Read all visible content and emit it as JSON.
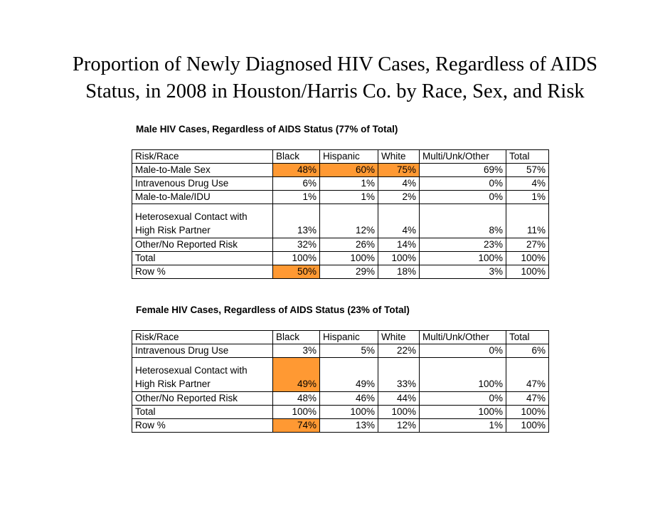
{
  "title": {
    "line1": "Proportion of Newly Diagnosed HIV Cases, Regardless of AIDS",
    "line2": "Status, in 2008 in Houston/Harris Co. by Race, Sex, and Risk"
  },
  "highlight_color": "#FF9933",
  "male": {
    "caption": "Male HIV Cases, Regardless of AIDS Status (77% of Total)",
    "headers": [
      "Risk/Race",
      "Black",
      "Hispanic",
      "White",
      "Multi/Unk/Other",
      "Total"
    ],
    "rows": [
      {
        "label": "Male-to-Male Sex",
        "values": [
          "48%",
          "60%",
          "75%",
          "69%",
          "57%"
        ]
      },
      {
        "label": "Intravenous Drug Use",
        "values": [
          "6%",
          "1%",
          "4%",
          "0%",
          "4%"
        ]
      },
      {
        "label": "Male-to-Male/IDU",
        "values": [
          "1%",
          "1%",
          "2%",
          "0%",
          "1%"
        ]
      },
      {
        "label": "Heterosexual Contact with High Risk Partner",
        "values": [
          "13%",
          "12%",
          "4%",
          "8%",
          "11%"
        ]
      },
      {
        "label": "Other/No Reported Risk",
        "values": [
          "32%",
          "26%",
          "14%",
          "23%",
          "27%"
        ]
      },
      {
        "label": "Total",
        "values": [
          "100%",
          "100%",
          "100%",
          "100%",
          "100%"
        ]
      },
      {
        "label": "Row %",
        "values": [
          "50%",
          "29%",
          "18%",
          "3%",
          "100%"
        ]
      }
    ]
  },
  "female": {
    "caption": "Female HIV Cases, Regardless of AIDS Status (23% of Total)",
    "headers": [
      "Risk/Race",
      "Black",
      "Hispanic",
      "White",
      "Multi/Unk/Other",
      "Total"
    ],
    "rows": [
      {
        "label": "Intravenous Drug Use",
        "values": [
          "3%",
          "5%",
          "22%",
          "0%",
          "6%"
        ]
      },
      {
        "label": "Heterosexual Contact with High Risk Partner",
        "values": [
          "49%",
          "49%",
          "33%",
          "100%",
          "47%"
        ]
      },
      {
        "label": "Other/No Reported Risk",
        "values": [
          "48%",
          "46%",
          "44%",
          "0%",
          "47%"
        ]
      },
      {
        "label": "Total",
        "values": [
          "100%",
          "100%",
          "100%",
          "100%",
          "100%"
        ]
      },
      {
        "label": "Row %",
        "values": [
          "74%",
          "13%",
          "12%",
          "1%",
          "100%"
        ]
      }
    ]
  }
}
